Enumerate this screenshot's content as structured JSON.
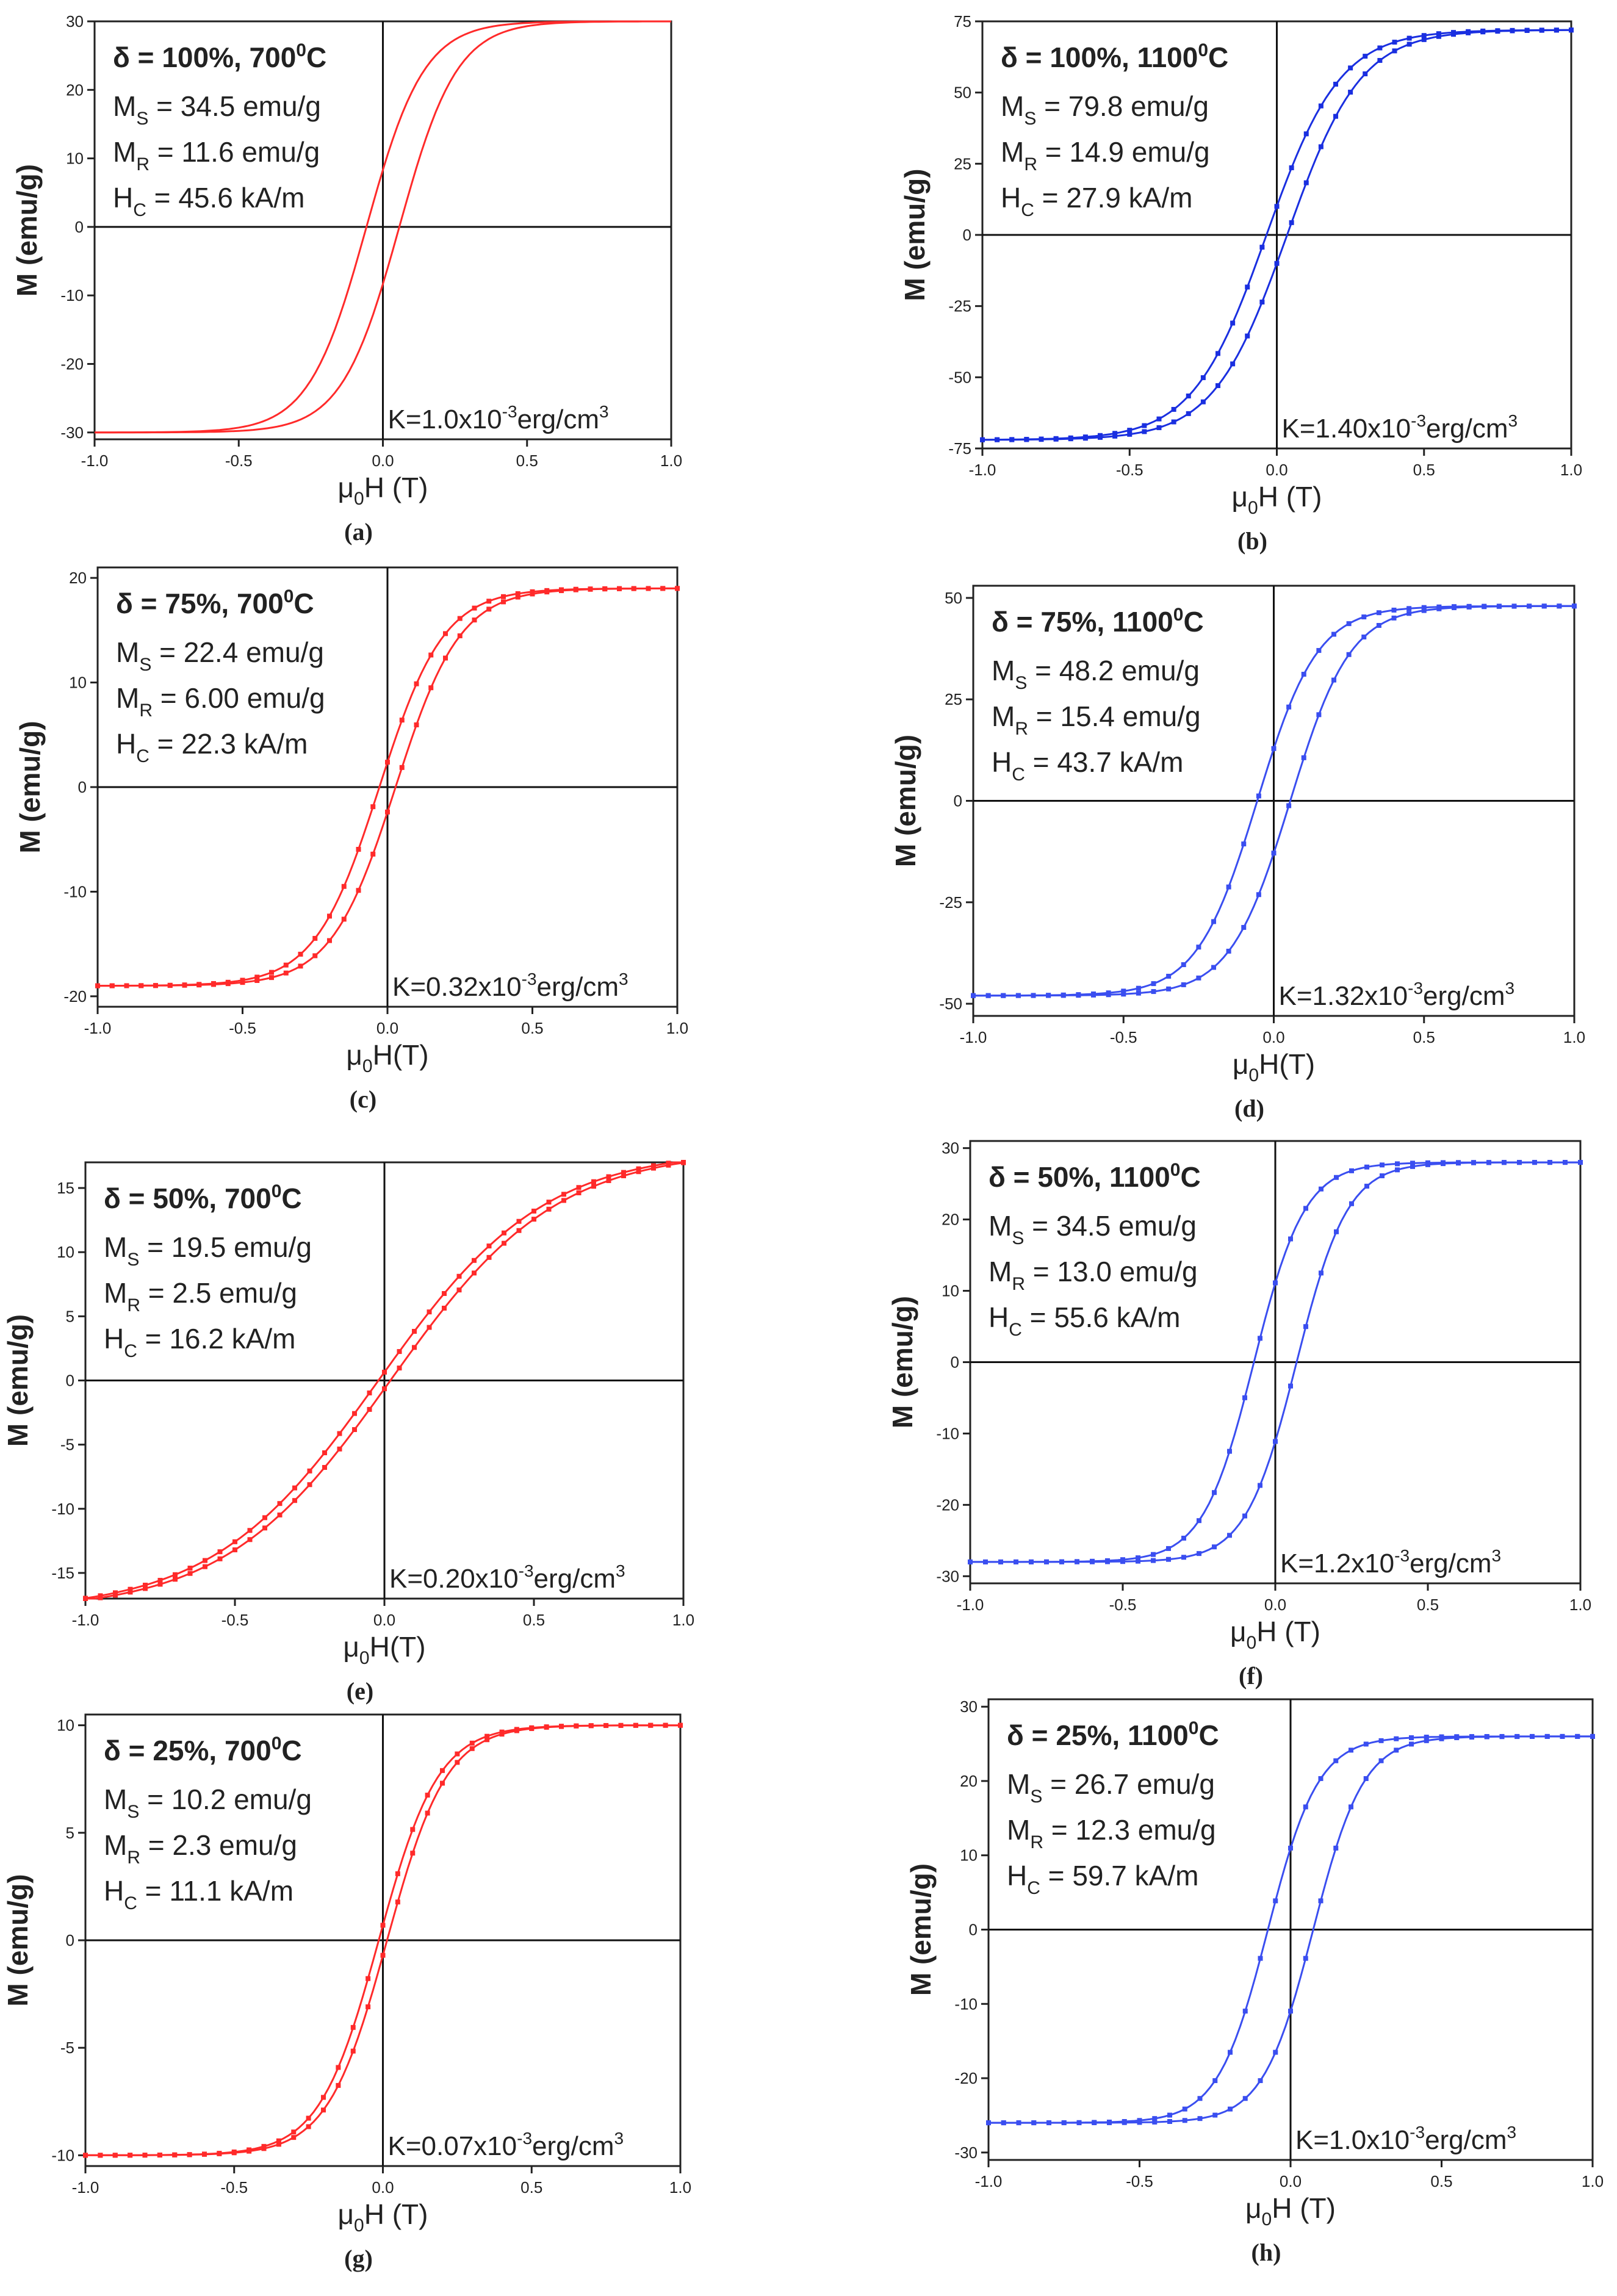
{
  "chart_data": [
    {
      "type": "line",
      "panel": "a",
      "caption": "(a)",
      "color": "#ff2a2a",
      "title_prefix": "δ = 100%, 700",
      "title_sup": "0",
      "title_suffix": "C",
      "ms": "= 34.5 emu/g",
      "mr": "= 11.6 emu/g",
      "hc": "= 45.6 kA/m",
      "k_prefix": "K=1.0x10",
      "k_exp": "-3",
      "k_suffix": "erg/cm",
      "k_pow": "3",
      "ylabel": "M (emu/g)",
      "xlabel": "H (T)",
      "xlim": [
        -1,
        1
      ],
      "ylim": [
        -31,
        30
      ],
      "xticks": [
        "-1.0",
        "-0.5",
        "0.0",
        "0.5",
        "1.0"
      ],
      "yticks": [
        -30,
        -20,
        -10,
        0,
        10,
        20,
        30
      ],
      "ytick_labels": [
        "-30",
        "-20",
        "-10",
        "0",
        "10",
        "20",
        "30"
      ],
      "saturation": 30,
      "remanence": 11.6,
      "coercivity_T": 0.057,
      "sharpness": 5,
      "markers": false
    },
    {
      "type": "line",
      "panel": "b",
      "caption": "(b)",
      "color": "#1a2fe0",
      "title_prefix": "δ = 100%, 1100",
      "title_sup": "0",
      "title_suffix": "C",
      "ms": "= 79.8 emu/g",
      "mr": "= 14.9 emu/g",
      "hc": "= 27.9 kA/m",
      "k_prefix": "K=1.40x10",
      "k_exp": "-3",
      "k_suffix": "erg/cm",
      "k_pow": "3",
      "ylabel": "M (emu/g)",
      "xlabel": "H (T)",
      "xlim": [
        -1,
        1
      ],
      "ylim": [
        -75,
        75
      ],
      "xticks": [
        "-1.0",
        "-0.5",
        "0.0",
        "0.5",
        "1.0"
      ],
      "yticks": [
        -75,
        -50,
        -25,
        0,
        25,
        50,
        75
      ],
      "ytick_labels": [
        "-75",
        "-50",
        "-25",
        "0",
        "25",
        "50",
        "75"
      ],
      "saturation": 72,
      "remanence": 14.9,
      "coercivity_T": 0.035,
      "sharpness": 4,
      "markers": true
    },
    {
      "type": "line",
      "panel": "c",
      "caption": "(c)",
      "color": "#ff2a2a",
      "title_prefix": "δ = 75%, 700",
      "title_sup": "0",
      "title_suffix": "C",
      "ms": "= 22.4 emu/g",
      "mr": "= 6.00 emu/g",
      "hc": "= 22.3 kA/m",
      "k_prefix": "K=0.32x10",
      "k_exp": "-3",
      "k_suffix": "erg/cm",
      "k_pow": "3",
      "ylabel": "M (emu/g)",
      "xlabel": "H(T)",
      "xlim": [
        -1,
        1
      ],
      "ylim": [
        -21,
        21
      ],
      "xticks": [
        "-1.0",
        "-0.5",
        "0.0",
        "0.5",
        "1.0"
      ],
      "yticks": [
        -20,
        -10,
        0,
        10,
        20
      ],
      "ytick_labels": [
        "-20",
        "-10",
        "0",
        "10",
        "20"
      ],
      "saturation": 19,
      "remanence": 6.0,
      "coercivity_T": 0.028,
      "sharpness": 4.5,
      "markers": true
    },
    {
      "type": "line",
      "panel": "d",
      "caption": "(d)",
      "color": "#3a4ef0",
      "title_prefix": "δ = 75%, 1100",
      "title_sup": "0",
      "title_suffix": "C",
      "ms": "= 48.2 emu/g",
      "mr": "= 15.4 emu/g",
      "hc": "= 43.7 kA/m",
      "k_prefix": "K=1.32x10",
      "k_exp": "-3",
      "k_suffix": "erg/cm",
      "k_pow": "3",
      "ylabel": "M (emu/g)",
      "xlabel": "H(T)",
      "xlim": [
        -1,
        1
      ],
      "ylim": [
        -53,
        53
      ],
      "xticks": [
        "-1.0",
        "-0.5",
        "0.0",
        "0.5",
        "1.0"
      ],
      "yticks": [
        -50,
        -25,
        0,
        25,
        50
      ],
      "ytick_labels": [
        "-50",
        "-25",
        "0",
        "25",
        "50"
      ],
      "saturation": 48,
      "remanence": 15.4,
      "coercivity_T": 0.055,
      "sharpness": 5,
      "markers": true
    },
    {
      "type": "line",
      "panel": "e",
      "caption": "(e)",
      "color": "#ff2a2a",
      "title_prefix": "δ = 50%, 700",
      "title_sup": "0",
      "title_suffix": "C",
      "ms": "= 19.5 emu/g",
      "mr": "= 2.5 emu/g",
      "hc": "= 16.2 kA/m",
      "k_prefix": "K=0.20x10",
      "k_exp": "-3",
      "k_suffix": "erg/cm",
      "k_pow": "3",
      "ylabel": "M (emu/g)",
      "xlabel": "H(T)",
      "xlim": [
        -1,
        1
      ],
      "ylim": [
        -17,
        17
      ],
      "xticks": [
        "-1.0",
        "-0.5",
        "0.0",
        "0.5",
        "1.0"
      ],
      "yticks": [
        -15,
        -10,
        -5,
        0,
        5,
        10,
        15
      ],
      "ytick_labels": [
        "-15",
        "-10",
        "-5",
        "0",
        "5",
        "10",
        "15"
      ],
      "saturation": 18,
      "remanence": 2.5,
      "coercivity_T": 0.02,
      "sharpness": 1.8,
      "markers": true
    },
    {
      "type": "line",
      "panel": "f",
      "caption": "(f)",
      "color": "#3a4ef0",
      "title_prefix": "δ = 50%, 1100",
      "title_sup": "0",
      "title_suffix": "C",
      "ms": "= 34.5 emu/g",
      "mr": "= 13.0 emu/g",
      "hc": "= 55.6 kA/m",
      "k_prefix": "K=1.2x10",
      "k_exp": "-3",
      "k_suffix": "erg/cm",
      "k_pow": "3",
      "ylabel": "M (emu/g)",
      "xlabel": "H (T)",
      "xlim": [
        -1,
        1
      ],
      "ylim": [
        -31,
        31
      ],
      "xticks": [
        "-1.0",
        "-0.5",
        "0.0",
        "0.5",
        "1.0"
      ],
      "yticks": [
        -30,
        -20,
        -10,
        0,
        10,
        20,
        30
      ],
      "ytick_labels": [
        "-30",
        "-20",
        "-10",
        "0",
        "10",
        "20",
        "30"
      ],
      "saturation": 28,
      "remanence": 13.0,
      "coercivity_T": 0.07,
      "sharpness": 6,
      "markers": true
    },
    {
      "type": "line",
      "panel": "g",
      "caption": "(g)",
      "color": "#ff2a2a",
      "title_prefix": "δ = 25%, 700",
      "title_sup": "0",
      "title_suffix": "C",
      "ms": "= 10.2 emu/g",
      "mr": "= 2.3 emu/g",
      "hc": "= 11.1 kA/m",
      "k_prefix": "K=0.07x10",
      "k_exp": "-3",
      "k_suffix": "erg/cm",
      "k_pow": "3",
      "ylabel": "M (emu/g)",
      "xlabel": "H (T)",
      "xlim": [
        -1,
        1
      ],
      "ylim": [
        -10.5,
        10.5
      ],
      "xticks": [
        "-1.0",
        "-0.5",
        "0.0",
        "0.5",
        "1.0"
      ],
      "yticks": [
        -10,
        -5,
        0,
        5,
        10
      ],
      "ytick_labels": [
        "-10",
        "-5",
        "0",
        "5",
        "10"
      ],
      "saturation": 10,
      "remanence": 2.3,
      "coercivity_T": 0.014,
      "sharpness": 5,
      "markers": true
    },
    {
      "type": "line",
      "panel": "h",
      "caption": "(h)",
      "color": "#3a4ef0",
      "title_prefix": "δ = 25%, 1100",
      "title_sup": "0",
      "title_suffix": "C",
      "ms": "= 26.7 emu/g",
      "mr": "= 12.3 emu/g",
      "hc": "= 59.7 kA/m",
      "k_prefix": "K=1.0x10",
      "k_exp": "-3",
      "k_suffix": "erg/cm",
      "k_pow": "3",
      "ylabel": "M (emu/g)",
      "xlabel": "H (T)",
      "xlim": [
        -1,
        1
      ],
      "ylim": [
        -31,
        31
      ],
      "xticks": [
        "-1.0",
        "-0.5",
        "0.0",
        "0.5",
        "1.0"
      ],
      "yticks": [
        -30,
        -20,
        -10,
        0,
        10,
        20,
        30
      ],
      "ytick_labels": [
        "-30",
        "-20",
        "-10",
        "0",
        "10",
        "20",
        "30"
      ],
      "saturation": 26,
      "remanence": 12.3,
      "coercivity_T": 0.075,
      "sharpness": 6,
      "markers": true
    }
  ]
}
